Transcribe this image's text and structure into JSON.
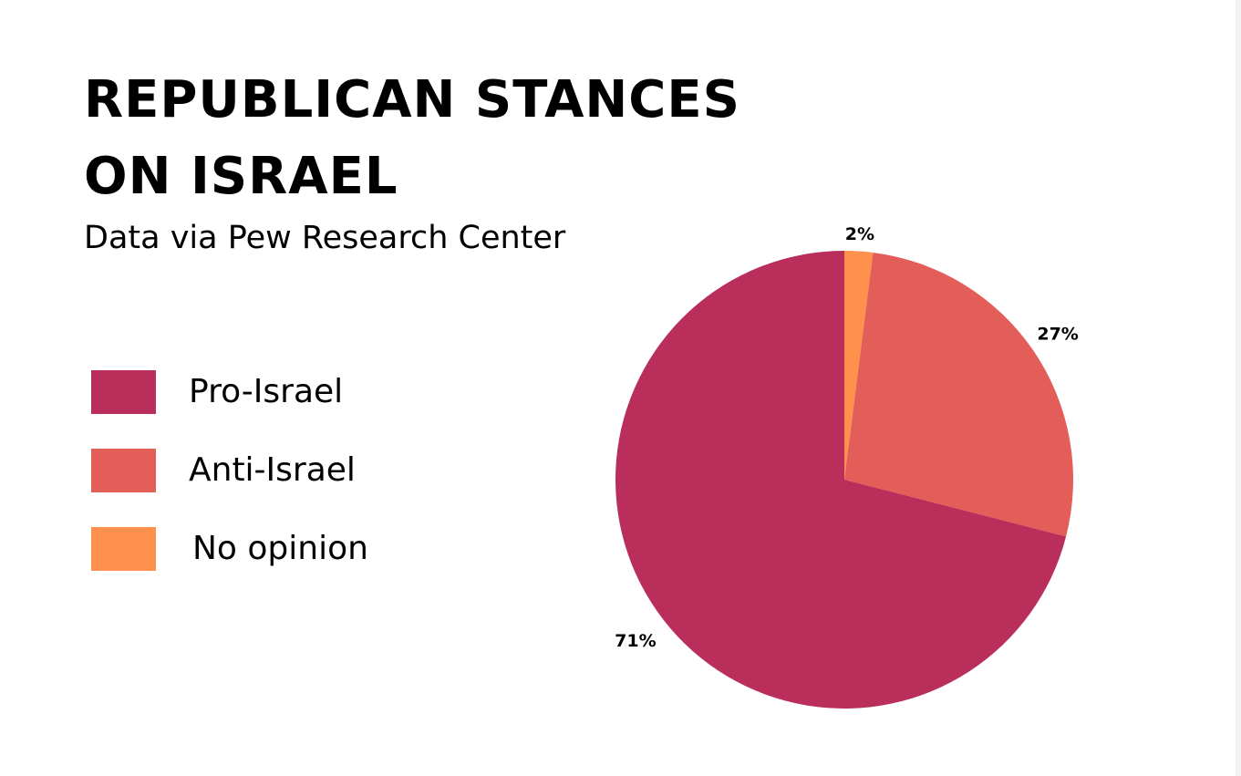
{
  "colors": {
    "pro_israel": "#b92e5a",
    "anti_israel": "#e35e59",
    "no_opinion": "#ff914d"
  },
  "chart_data": {
    "type": "pie",
    "title": "REPUBLICAN STANCES ON ISRAEL",
    "title_lines": [
      "REPUBLICAN STANCES",
      "ON ISRAEL"
    ],
    "subtitle": "Data via Pew Research Center",
    "legend_position": "left",
    "slices": [
      {
        "label": "No opinion",
        "value": 2,
        "value_label": "2%",
        "color": "#ff914d"
      },
      {
        "label": "Anti-Israel",
        "value": 27,
        "value_label": "27%",
        "color": "#e35e59"
      },
      {
        "label": "Pro-Israel",
        "value": 71,
        "value_label": "71%",
        "color": "#b92e5a"
      }
    ],
    "legend": [
      {
        "label": "Pro-Israel",
        "color": "#b92e5a"
      },
      {
        "label": "Anti-Israel",
        "color": "#e35e59"
      },
      {
        "label": "No opinion",
        "color": "#ff914d"
      }
    ]
  }
}
